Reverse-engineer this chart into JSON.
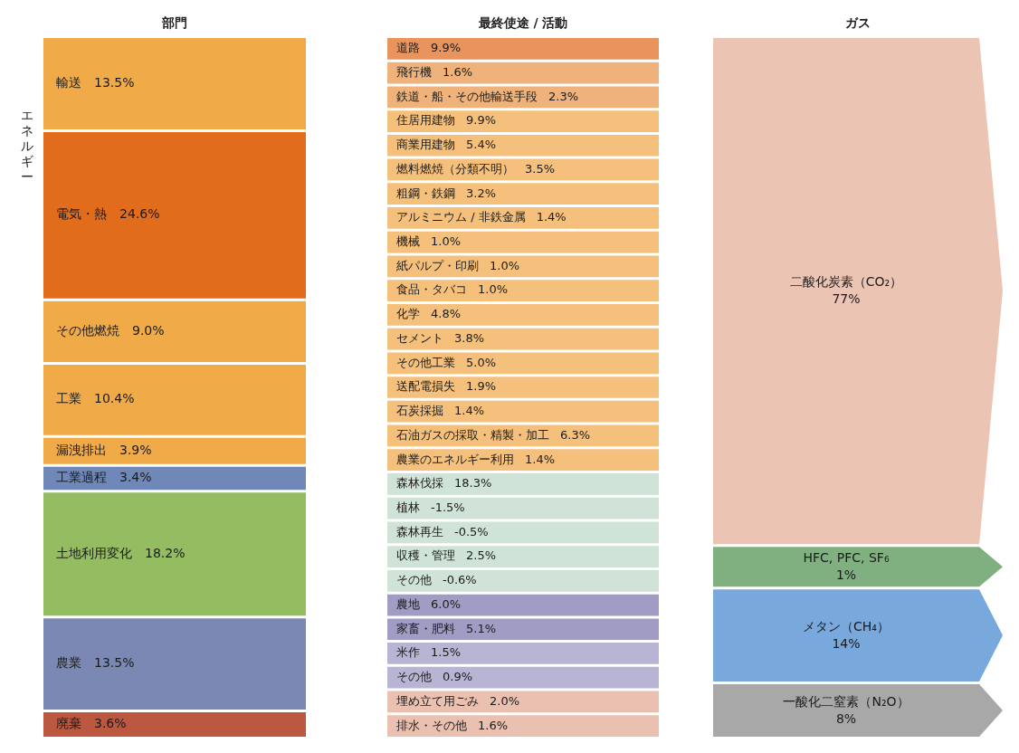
{
  "chart_data": {
    "type": "other",
    "categories": [
      "輸送",
      "電気・熱",
      "その他燃焼",
      "工業",
      "漏洩排出",
      "工業過程",
      "土地利用変化",
      "農業",
      "廃棄",
      "道路",
      "飛行機",
      "鉄道・船・その他輸送手段",
      "住居用建物",
      "商業用建物",
      "燃料燃焼（分類不明）",
      "粗鋼・鉄鋼",
      "アルミニウム / 非鉄金属",
      "機械",
      "紙パルプ・印刷",
      "食品・タバコ",
      "化学",
      "セメント",
      "その他工業",
      "送配電損失",
      "石炭採掘",
      "石油ガスの採取・精製・加工",
      "農業のエネルギー利用",
      "森林伐採",
      "植林",
      "森林再生",
      "収穫・管理",
      "その他",
      "農地",
      "家畜・肥料",
      "米作",
      "その他",
      "埋め立て用ごみ",
      "排水・その他",
      "二酸化炭素（CO₂）",
      "HFC, PFC, SF₆",
      "メタン（CH₄）",
      "一酸化二窒素（N₂O）"
    ],
    "series": [
      {
        "name": "部門",
        "values": [
          13.5,
          24.6,
          9.0,
          10.4,
          3.9,
          3.4,
          18.2,
          13.5,
          3.6,
          null,
          null,
          null,
          null,
          null,
          null,
          null,
          null,
          null,
          null,
          null,
          null,
          null,
          null,
          null,
          null,
          null,
          null,
          null,
          null,
          null,
          null,
          null,
          null,
          null,
          null,
          null,
          null,
          null,
          null,
          null,
          null,
          null
        ],
        "value_labels": [
          "13.5%",
          "24.6%",
          "9.0%",
          "10.4%",
          "3.9%",
          "3.4%",
          "18.2%",
          "13.5%",
          "3.6%",
          null,
          null,
          null,
          null,
          null,
          null,
          null,
          null,
          null,
          null,
          null,
          null,
          null,
          null,
          null,
          null,
          null,
          null,
          null,
          null,
          null,
          null,
          null,
          null,
          null,
          null,
          null,
          null,
          null,
          null,
          null,
          null,
          null
        ],
        "colors": [
          "#f0aa48",
          "#e06c1c",
          "#f0aa48",
          "#f0aa48",
          "#f0aa48",
          "#7088b8",
          "#94bc60",
          "#7c88b4",
          "#bc5840",
          null,
          null,
          null,
          null,
          null,
          null,
          null,
          null,
          null,
          null,
          null,
          null,
          null,
          null,
          null,
          null,
          null,
          null,
          null,
          null,
          null,
          null,
          null,
          null,
          null,
          null,
          null,
          null,
          null,
          null,
          null,
          null,
          null
        ]
      },
      {
        "name": "最終使途 / 活動",
        "values": [
          null,
          null,
          null,
          null,
          null,
          null,
          null,
          null,
          null,
          9.9,
          1.6,
          2.3,
          9.9,
          5.4,
          3.5,
          3.2,
          1.4,
          1.0,
          1.0,
          1.0,
          4.8,
          3.8,
          5.0,
          1.9,
          1.4,
          6.3,
          1.4,
          18.3,
          -1.5,
          -0.5,
          2.5,
          -0.6,
          6.0,
          5.1,
          1.5,
          0.9,
          2.0,
          1.6,
          null,
          null,
          null,
          null
        ],
        "value_labels": [
          null,
          null,
          null,
          null,
          null,
          null,
          null,
          null,
          null,
          "9.9%",
          "1.6%",
          "2.3%",
          "9.9%",
          "5.4%",
          "3.5%",
          "3.2%",
          "1.4%",
          "1.0%",
          "1.0%",
          "1.0%",
          "4.8%",
          "3.8%",
          "5.0%",
          "1.9%",
          "1.4%",
          "6.3%",
          "1.4%",
          "18.3%",
          "-1.5%",
          "-0.5%",
          "2.5%",
          "-0.6%",
          "6.0%",
          "5.1%",
          "1.5%",
          "0.9%",
          "2.0%",
          "1.6%",
          null,
          null,
          null,
          null
        ],
        "colors": [
          null,
          null,
          null,
          null,
          null,
          null,
          null,
          null,
          null,
          "#e8945c",
          "#eeb27a",
          "#eeb27a",
          "#f5c07c",
          "#f5c07c",
          "#f5c07c",
          "#f5c07c",
          "#f5c07c",
          "#f5c07c",
          "#f5c07c",
          "#f5c07c",
          "#f5c07c",
          "#f5c07c",
          "#f5c07c",
          "#f5c07c",
          "#f5c07c",
          "#f5c07c",
          "#f5c07c",
          "#cfe3d6",
          "#cfe3d6",
          "#cfe3d6",
          "#cfe3d6",
          "#cfe3d6",
          "#a09cc4",
          "#a09cc4",
          "#b8b4d4",
          "#b8b4d4",
          "#eac0b0",
          "#eac0b0",
          null,
          null,
          null,
          null
        ]
      },
      {
        "name": "ガス",
        "values": [
          null,
          null,
          null,
          null,
          null,
          null,
          null,
          null,
          null,
          null,
          null,
          null,
          null,
          null,
          null,
          null,
          null,
          null,
          null,
          null,
          null,
          null,
          null,
          null,
          null,
          null,
          null,
          null,
          null,
          null,
          null,
          null,
          null,
          null,
          null,
          null,
          null,
          null,
          77,
          1,
          14,
          8
        ],
        "value_labels": [
          null,
          null,
          null,
          null,
          null,
          null,
          null,
          null,
          null,
          null,
          null,
          null,
          null,
          null,
          null,
          null,
          null,
          null,
          null,
          null,
          null,
          null,
          null,
          null,
          null,
          null,
          null,
          null,
          null,
          null,
          null,
          null,
          null,
          null,
          null,
          null,
          null,
          null,
          "77%",
          "1%",
          "14%",
          "8%"
        ],
        "colors": [
          null,
          null,
          null,
          null,
          null,
          null,
          null,
          null,
          null,
          null,
          null,
          null,
          null,
          null,
          null,
          null,
          null,
          null,
          null,
          null,
          null,
          null,
          null,
          null,
          null,
          null,
          null,
          null,
          null,
          null,
          null,
          null,
          null,
          null,
          null,
          null,
          null,
          null,
          "#ebc4b4",
          "#80b080",
          "#78a8dc",
          "#a8a8a8"
        ]
      }
    ],
    "annotations": [
      "エネルギー"
    ]
  }
}
